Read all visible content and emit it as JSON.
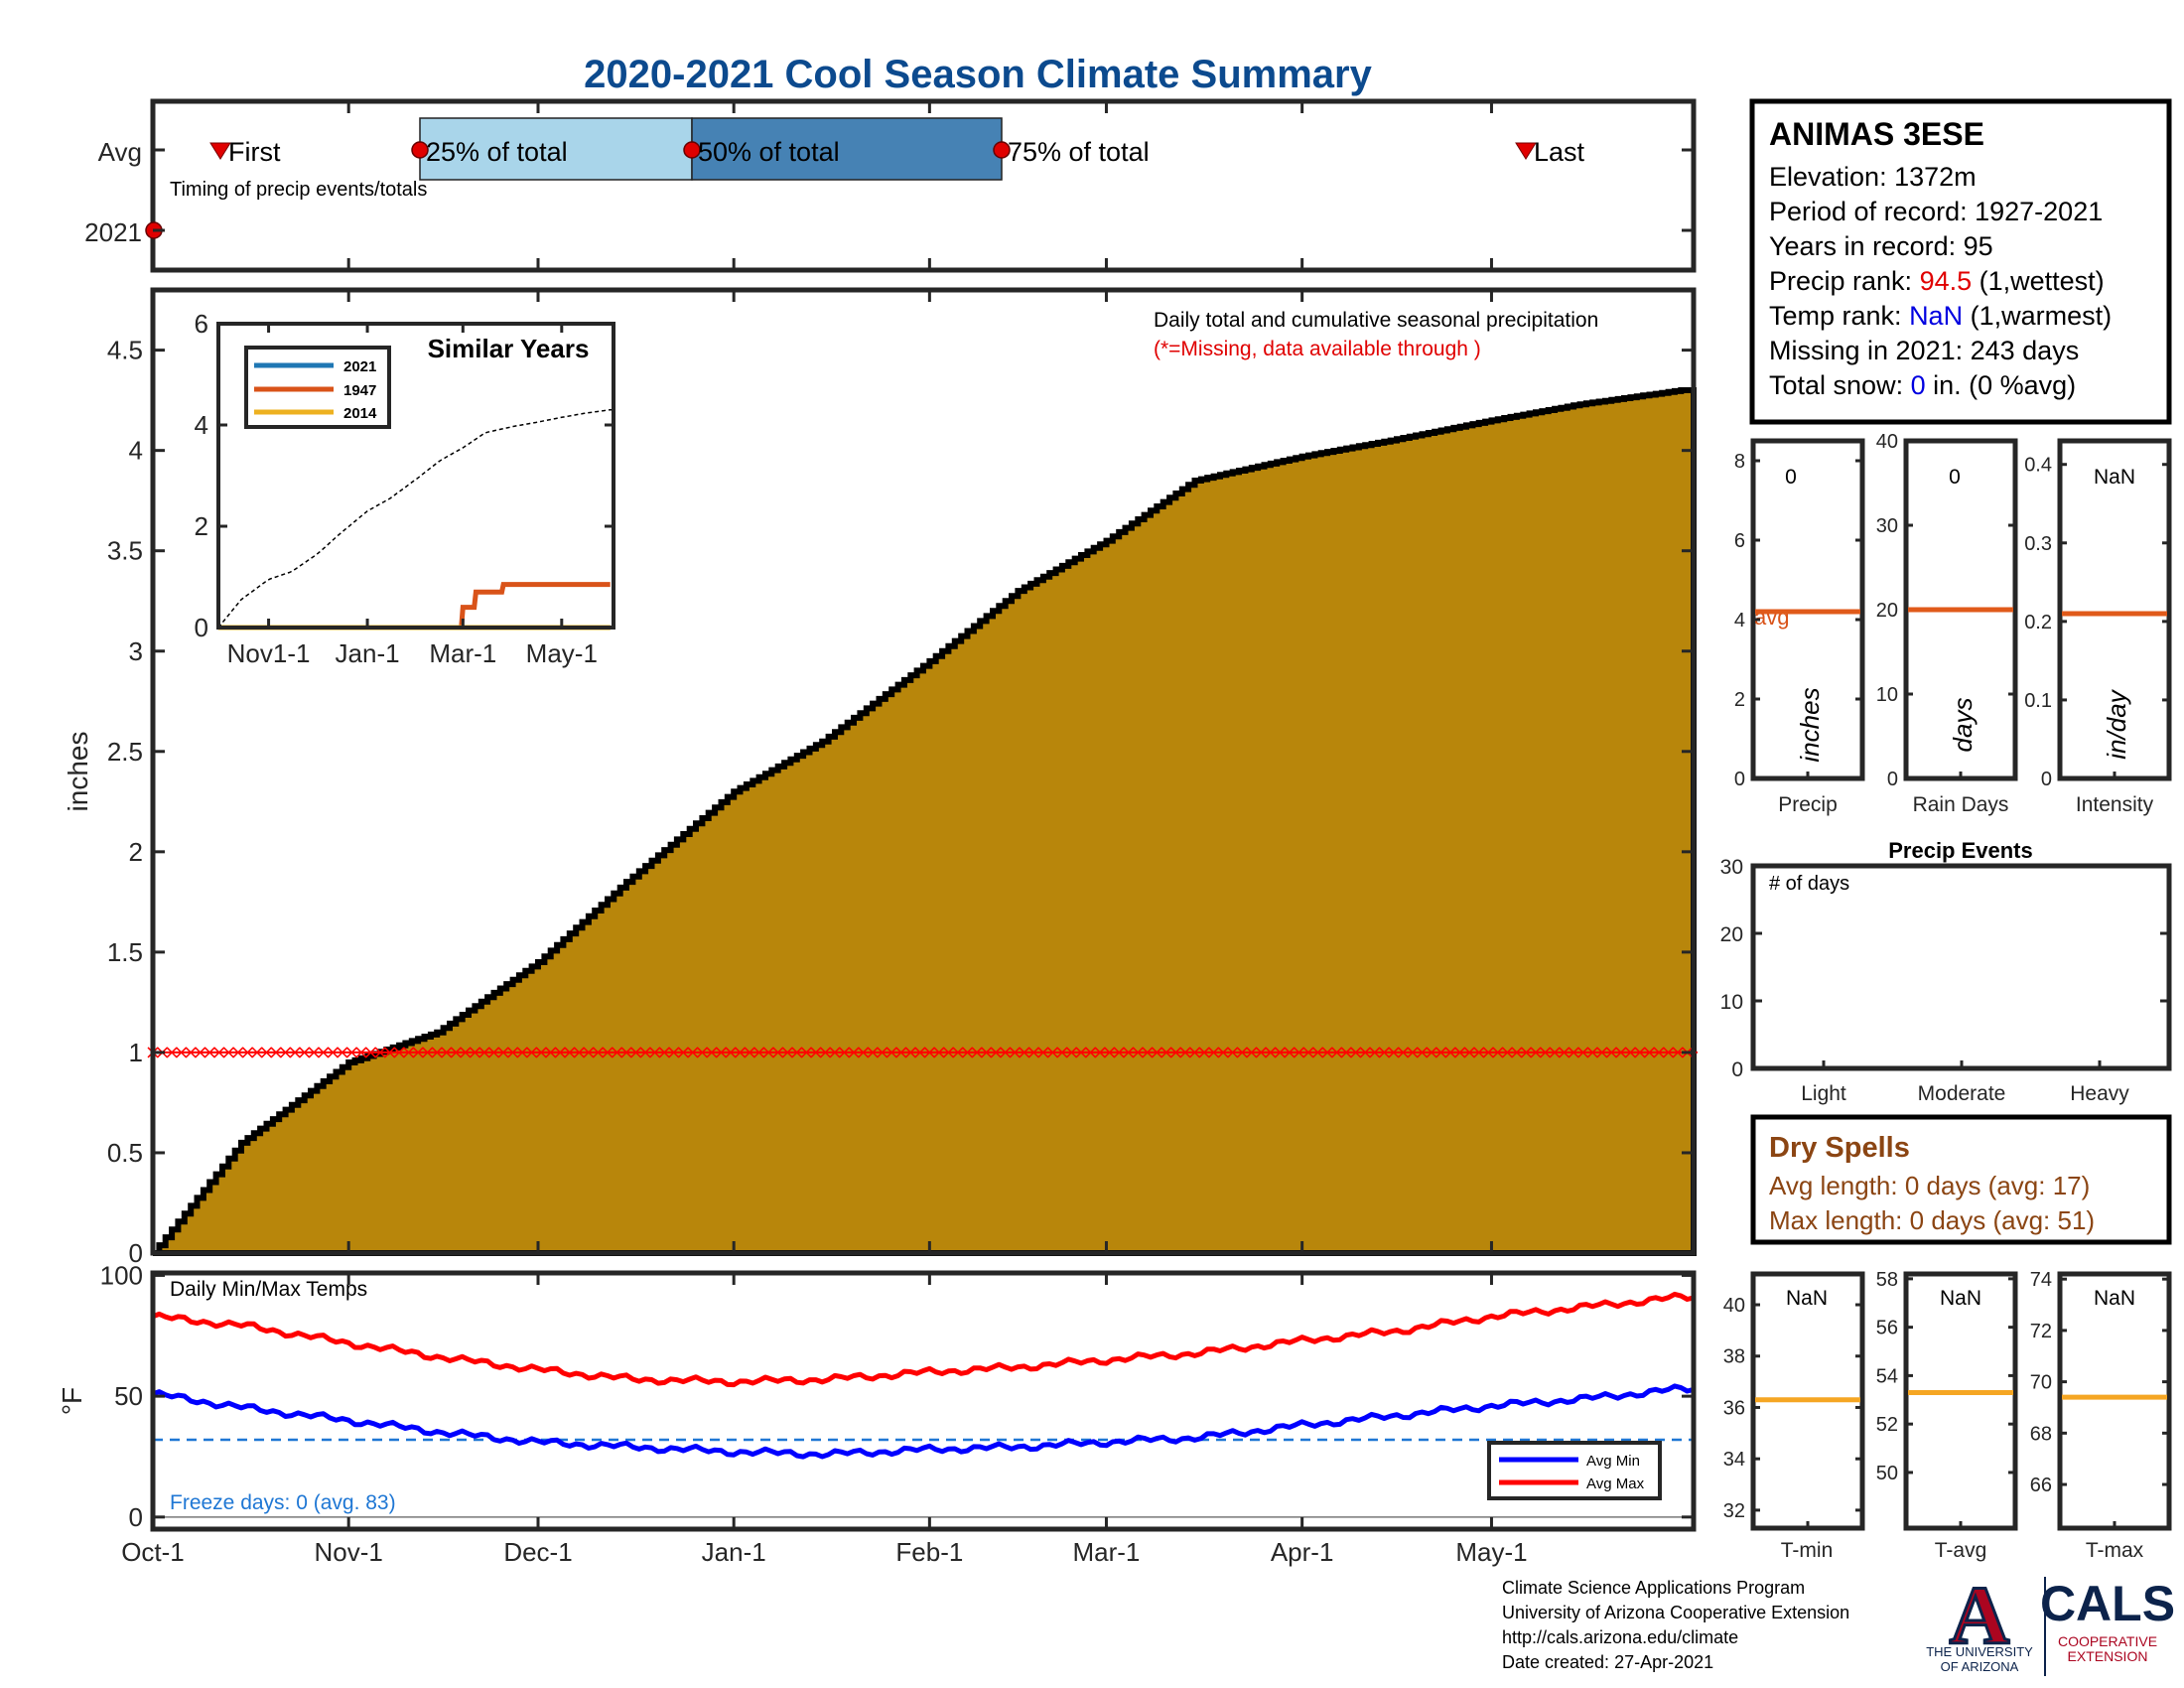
{
  "page": {
    "title": "2020-2021 Cool Season Climate Summary"
  },
  "colors": {
    "title": "#0c4a8e",
    "cumulative_fill": "#b8860b",
    "precip_red": "#ff0000",
    "inset_dashed": "#000000",
    "avg_line": "#e05a1a",
    "temp_avg_line": "#f5a623",
    "avg_min": "#0000ff",
    "avg_max": "#ff0000",
    "freeze_line": "#1f77d4",
    "timing_light": "#a9d5ea",
    "timing_dark": "#4682b4",
    "dry_spells": "#8b4513",
    "rank_value_red": "#e00000",
    "rank_value_blue": "#0000e0",
    "cals_blue": "#0c2340",
    "ua_red": "#ab0520",
    "ua_navy": "#0c234b"
  },
  "timing": {
    "row_labels": [
      "Avg",
      "2021"
    ],
    "caption": "Timing of precip events/totals",
    "markers": {
      "first": "First",
      "q25": "25% of total",
      "q50": "50% of total",
      "q75": "75% of total",
      "last": "Last"
    }
  },
  "station": {
    "name": "ANIMAS 3ESE",
    "elevation_label": "Elevation: ",
    "elevation": "1372m",
    "period_label": "Period of record: ",
    "period": "1927-2021",
    "years_label": "Years in record: ",
    "years": "95",
    "precip_rank_label": "Precip rank: ",
    "precip_rank": "94.5",
    "precip_rank_note": " (1,wettest)",
    "temp_rank_label": "Temp rank: ",
    "temp_rank": "NaN",
    "temp_rank_note": " (1,warmest)",
    "missing_label": "Missing in 2021: ",
    "missing": "243 days",
    "snow_label": "Total snow: ",
    "snow_value": "0",
    "snow_note": " in. (0 %avg)"
  },
  "main_chart": {
    "ylabel": "inches",
    "annotation_1": "Daily total and cumulative seasonal precipitation",
    "annotation_2": "(*=Missing, data available through )"
  },
  "inset": {
    "title": "Similar Years",
    "legend": [
      "2021",
      "1947",
      "2014"
    ]
  },
  "temps_chart": {
    "title": "Daily Min/Max Temps",
    "ylabel": "°F",
    "freeze_text": "Freeze days: 0 (avg. 83)",
    "legend": [
      "Avg Min",
      "Avg Max"
    ]
  },
  "mini_precip": [
    {
      "label": "Precip",
      "unit": "inches",
      "value": "0",
      "avg_text": "avg"
    },
    {
      "label": "Rain Days",
      "unit": "days",
      "value": "0"
    },
    {
      "label": "Intensity",
      "unit": "in/day",
      "value": "NaN"
    }
  ],
  "precip_events": {
    "title": "Precip Events",
    "ylabel": "# of days",
    "categories": [
      "Light",
      "Moderate",
      "Heavy"
    ]
  },
  "dry_spells": {
    "title": "Dry Spells",
    "avg_length": "Avg length: 0 days (avg: 17)",
    "max_length": "Max length: 0 days (avg: 51)"
  },
  "mini_temp": [
    {
      "label": "T-min",
      "value": "NaN"
    },
    {
      "label": "T-avg",
      "value": "NaN"
    },
    {
      "label": "T-max",
      "value": "NaN"
    }
  ],
  "footer": {
    "line1": "Climate Science Applications Program",
    "line2": "University of Arizona Cooperative Extension",
    "line3": "http://cals.arizona.edu/climate",
    "line4": " Date created: 27-Apr-2021"
  },
  "logos": {
    "ua_letter": "A",
    "ua_line1": "THE UNIVERSITY",
    "ua_line2": "OF ARIZONA",
    "cals": "CALS",
    "cals_sub1": "COOPERATIVE",
    "cals_sub2": "EXTENSION"
  },
  "chart_data": [
    {
      "type": "area",
      "id": "cumulative_precip",
      "x_dates": [
        "Oct-1",
        "Oct-15",
        "Nov-1",
        "Nov-15",
        "Dec-1",
        "Dec-15",
        "Jan-1",
        "Jan-15",
        "Feb-1",
        "Feb-15",
        "Mar-1",
        "Mar-15",
        "Apr-1",
        "Apr-15",
        "May-1",
        "May-15",
        "May-31"
      ],
      "x_day": [
        0,
        14,
        31,
        45,
        61,
        75,
        92,
        106,
        123,
        137,
        151,
        165,
        182,
        196,
        212,
        226,
        242
      ],
      "values": [
        0.0,
        0.55,
        0.95,
        1.1,
        1.45,
        1.85,
        2.3,
        2.55,
        2.95,
        3.3,
        3.55,
        3.85,
        3.97,
        4.05,
        4.15,
        4.23,
        4.3
      ],
      "missing_marker_value": 1.0,
      "xticks": [
        "Oct-1",
        "Nov-1",
        "Dec-1",
        "Jan-1",
        "Feb-1",
        "Mar-1",
        "Apr-1",
        "May-1"
      ],
      "ylim": [
        0,
        4.8
      ],
      "yticks": [
        0,
        0.5,
        1,
        1.5,
        2,
        2.5,
        3,
        3.5,
        4,
        4.5
      ],
      "ylabel": "inches",
      "grid": false
    },
    {
      "type": "line",
      "id": "similar_years_inset",
      "xticks": [
        "Nov1-1",
        "Jan-1",
        "Mar-1",
        "May-1"
      ],
      "ylim": [
        0,
        6
      ],
      "yticks": [
        0,
        2,
        4,
        6
      ],
      "legend_placement": "top-left",
      "series": [
        {
          "name": "2021",
          "color": "#1f77b4",
          "x_day": [
            0,
            242
          ],
          "values": [
            0,
            0
          ]
        },
        {
          "name": "1947",
          "color": "#d95319",
          "x_day": [
            0,
            150,
            151,
            158,
            159,
            175,
            176,
            242
          ],
          "values": [
            0,
            0,
            0.4,
            0.4,
            0.7,
            0.7,
            0.85,
            0.85
          ]
        },
        {
          "name": "2014",
          "color": "#edb120",
          "x_day": [
            0,
            242
          ],
          "values": [
            0,
            0
          ]
        },
        {
          "name": "Avg",
          "style": "dashed",
          "x_day": [
            0,
            14,
            31,
            45,
            61,
            75,
            92,
            106,
            123,
            137,
            151,
            165,
            182,
            196,
            212,
            226,
            242
          ],
          "values": [
            0.0,
            0.55,
            0.95,
            1.1,
            1.45,
            1.85,
            2.3,
            2.55,
            2.95,
            3.3,
            3.55,
            3.85,
            3.97,
            4.05,
            4.15,
            4.23,
            4.3
          ]
        }
      ]
    },
    {
      "type": "line",
      "id": "daily_min_max_temps",
      "x_day": [
        0,
        15,
        31,
        46,
        61,
        76,
        92,
        107,
        123,
        137,
        151,
        166,
        182,
        197,
        212,
        227,
        242
      ],
      "xticks": [
        "Oct-1",
        "Nov-1",
        "Dec-1",
        "Jan-1",
        "Feb-1",
        "Mar-1",
        "Apr-1",
        "May-1"
      ],
      "ylim": [
        -5,
        101
      ],
      "yticks": [
        0,
        50,
        100
      ],
      "freeze_line": 32,
      "legend_placement": "bottom-right",
      "series": [
        {
          "name": "Avg Max",
          "values": [
            83,
            79,
            72,
            66,
            61,
            57,
            56,
            57,
            60,
            62,
            65,
            68,
            73,
            77,
            83,
            87,
            91
          ]
        },
        {
          "name": "Avg Min",
          "values": [
            51,
            45,
            40,
            35,
            31,
            29,
            27,
            26,
            28,
            29,
            31,
            33,
            38,
            42,
            46,
            49,
            53
          ]
        }
      ]
    },
    {
      "type": "bar",
      "id": "mini_precip",
      "panels": [
        {
          "name": "Precip",
          "ylim": [
            0,
            8.5
          ],
          "yticks": [
            0,
            2,
            4,
            6,
            8
          ],
          "avg": 4.2,
          "value": 0
        },
        {
          "name": "Rain Days",
          "ylim": [
            0,
            40
          ],
          "yticks": [
            0,
            10,
            20,
            30,
            40
          ],
          "avg": 20,
          "value": 0
        },
        {
          "name": "Intensity",
          "ylim": [
            0,
            0.43
          ],
          "yticks": [
            0,
            0.1,
            0.2,
            0.3,
            0.4
          ],
          "avg": 0.21
        }
      ]
    },
    {
      "type": "bar",
      "id": "precip_events",
      "categories": [
        "Light",
        "Moderate",
        "Heavy"
      ],
      "values": [
        0,
        0,
        0
      ],
      "ylim": [
        0,
        30
      ],
      "yticks": [
        0,
        10,
        20,
        30
      ]
    },
    {
      "type": "bar",
      "id": "mini_temps",
      "panels": [
        {
          "name": "T-min",
          "ylim": [
            31.3,
            41.2
          ],
          "yticks": [
            32,
            34,
            36,
            38,
            40
          ],
          "avg": 36.3
        },
        {
          "name": "T-avg",
          "ylim": [
            47.7,
            58.2
          ],
          "yticks": [
            50,
            52,
            54,
            56,
            58
          ],
          "avg": 53.3
        },
        {
          "name": "T-max",
          "ylim": [
            64.3,
            74.2
          ],
          "yticks": [
            66,
            68,
            70,
            72,
            74
          ],
          "avg": 69.4
        }
      ]
    }
  ]
}
